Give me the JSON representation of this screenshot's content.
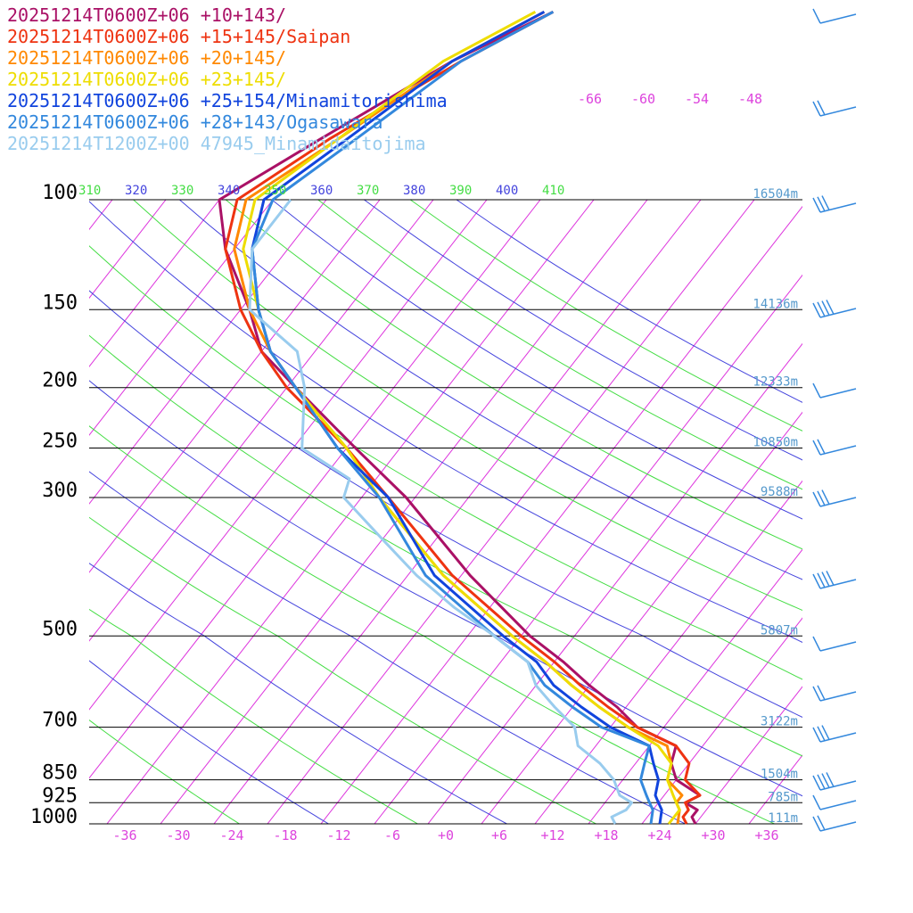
{
  "chart_data": {
    "type": "line",
    "chart_kind": "skew-T log-P aerological diagram",
    "title": "",
    "xlabel": "",
    "ylabel": "",
    "x_axis": {
      "ticks": [
        "-36",
        "-30",
        "-24",
        "-18",
        "-12",
        "-6",
        "+0",
        "+6",
        "+12",
        "+18",
        "+24",
        "+30",
        "+36"
      ],
      "range": [
        -40,
        40
      ],
      "unit": "degC"
    },
    "y_axis": {
      "scale": "log",
      "ticks": [
        "100",
        "150",
        "200",
        "250",
        "300",
        "500",
        "700",
        "850",
        "925",
        "1000"
      ],
      "range": [
        1000,
        100
      ],
      "unit": "hPa"
    },
    "height_labels": [
      {
        "p": 100,
        "text": "16504m"
      },
      {
        "p": 150,
        "text": "14136m"
      },
      {
        "p": 200,
        "text": "12333m"
      },
      {
        "p": 250,
        "text": "10850m"
      },
      {
        "p": 300,
        "text": "9588m"
      },
      {
        "p": 500,
        "text": "5807m"
      },
      {
        "p": 700,
        "text": "3122m"
      },
      {
        "p": 850,
        "text": "1504m"
      },
      {
        "p": 925,
        "text": "785m"
      },
      {
        "p": 1000,
        "text": "111m"
      }
    ],
    "theta_e_labels": [
      {
        "text": "310",
        "color": "#44dd44"
      },
      {
        "text": "320",
        "color": "#4444dd"
      },
      {
        "text": "330",
        "color": "#44dd44"
      },
      {
        "text": "340",
        "color": "#4444dd"
      },
      {
        "text": "350",
        "color": "#44dd44"
      },
      {
        "text": "360",
        "color": "#4444dd"
      },
      {
        "text": "370",
        "color": "#44dd44"
      },
      {
        "text": "380",
        "color": "#4444dd"
      },
      {
        "text": "390",
        "color": "#44dd44"
      },
      {
        "text": "400",
        "color": "#4444dd"
      },
      {
        "text": "410",
        "color": "#44dd44"
      }
    ],
    "isotherm_top_labels": [
      "-66",
      "-60",
      "-54",
      "-48"
    ],
    "grid": true,
    "legend_position": "top-left",
    "series": [
      {
        "name": "20251214T0600Z+06 +10+143/",
        "color": "#aa1166",
        "points": [
          [
            1000,
            28
          ],
          [
            975,
            27
          ],
          [
            950,
            27
          ],
          [
            925,
            25
          ],
          [
            900,
            26
          ],
          [
            850,
            22
          ],
          [
            800,
            20
          ],
          [
            750,
            19
          ],
          [
            700,
            13
          ],
          [
            650,
            9
          ],
          [
            600,
            4
          ],
          [
            550,
            -1
          ],
          [
            500,
            -7
          ],
          [
            400,
            -19
          ],
          [
            300,
            -33
          ],
          [
            250,
            -43
          ],
          [
            200,
            -55
          ],
          [
            175,
            -62
          ],
          [
            150,
            -67
          ],
          [
            120,
            -75
          ],
          [
            100,
            -80
          ],
          [
            80,
            -74
          ],
          [
            60,
            -66
          ],
          [
            50,
            -59
          ]
        ]
      },
      {
        "name": "20251214T0600Z+06 +15+145/Saipan",
        "color": "#ee3311",
        "points": [
          [
            1000,
            27
          ],
          [
            975,
            26
          ],
          [
            950,
            26
          ],
          [
            925,
            25
          ],
          [
            900,
            26
          ],
          [
            850,
            23
          ],
          [
            800,
            22
          ],
          [
            750,
            19
          ],
          [
            700,
            13
          ],
          [
            650,
            8
          ],
          [
            600,
            3
          ],
          [
            550,
            -2
          ],
          [
            500,
            -8
          ],
          [
            400,
            -21
          ],
          [
            300,
            -35
          ],
          [
            250,
            -44
          ],
          [
            200,
            -56
          ],
          [
            175,
            -62
          ],
          [
            150,
            -68
          ],
          [
            120,
            -75
          ],
          [
            100,
            -78
          ],
          [
            80,
            -73
          ],
          [
            60,
            -65
          ],
          [
            50,
            -59
          ]
        ]
      },
      {
        "name": "20251214T0600Z+06 +20+145/",
        "color": "#ff8800",
        "points": [
          [
            1000,
            26
          ],
          [
            950,
            25
          ],
          [
            925,
            24
          ],
          [
            900,
            24
          ],
          [
            850,
            21
          ],
          [
            800,
            20
          ],
          [
            750,
            18
          ],
          [
            700,
            12
          ],
          [
            650,
            7
          ],
          [
            600,
            2
          ],
          [
            550,
            -3
          ],
          [
            500,
            -9
          ],
          [
            400,
            -22
          ],
          [
            300,
            -36
          ],
          [
            250,
            -44
          ],
          [
            200,
            -55
          ],
          [
            175,
            -61
          ],
          [
            150,
            -67
          ],
          [
            120,
            -74
          ],
          [
            100,
            -77
          ],
          [
            80,
            -72
          ],
          [
            60,
            -66
          ],
          [
            50,
            -60
          ]
        ]
      },
      {
        "name": "20251214T0600Z+06 +23+145/",
        "color": "#eedd00",
        "points": [
          [
            1000,
            25
          ],
          [
            950,
            25
          ],
          [
            925,
            24
          ],
          [
            900,
            23
          ],
          [
            850,
            21
          ],
          [
            800,
            20
          ],
          [
            750,
            17
          ],
          [
            700,
            12
          ],
          [
            650,
            7
          ],
          [
            600,
            2
          ],
          [
            550,
            -3
          ],
          [
            500,
            -9
          ],
          [
            400,
            -22
          ],
          [
            300,
            -36
          ],
          [
            250,
            -44
          ],
          [
            200,
            -55
          ],
          [
            175,
            -61
          ],
          [
            150,
            -66
          ],
          [
            120,
            -73
          ],
          [
            100,
            -76
          ],
          [
            80,
            -72
          ],
          [
            60,
            -67
          ],
          [
            50,
            -61
          ]
        ]
      },
      {
        "name": "20251214T0600Z+06 +25+154/Minamitorishima",
        "color": "#1144dd",
        "points": [
          [
            1000,
            24
          ],
          [
            950,
            23
          ],
          [
            925,
            22
          ],
          [
            900,
            21
          ],
          [
            850,
            20
          ],
          [
            800,
            18
          ],
          [
            750,
            16
          ],
          [
            700,
            10
          ],
          [
            650,
            5
          ],
          [
            600,
            0
          ],
          [
            550,
            -4
          ],
          [
            500,
            -10
          ],
          [
            400,
            -23
          ],
          [
            300,
            -35
          ],
          [
            250,
            -45
          ],
          [
            200,
            -55
          ],
          [
            175,
            -61
          ],
          [
            150,
            -66
          ],
          [
            120,
            -72
          ],
          [
            100,
            -75
          ],
          [
            80,
            -71
          ],
          [
            60,
            -66
          ],
          [
            50,
            -60
          ]
        ]
      },
      {
        "name": "20251214T0600Z+06 +28+143/Ogasawara",
        "color": "#3388dd",
        "points": [
          [
            1000,
            23
          ],
          [
            950,
            22
          ],
          [
            925,
            21
          ],
          [
            900,
            20
          ],
          [
            850,
            18
          ],
          [
            800,
            17
          ],
          [
            750,
            16
          ],
          [
            700,
            9
          ],
          [
            650,
            4
          ],
          [
            600,
            -1
          ],
          [
            550,
            -5
          ],
          [
            500,
            -11
          ],
          [
            400,
            -24
          ],
          [
            300,
            -36
          ],
          [
            250,
            -45
          ],
          [
            200,
            -55
          ],
          [
            175,
            -61
          ],
          [
            150,
            -66
          ],
          [
            120,
            -72
          ],
          [
            100,
            -74
          ],
          [
            80,
            -70
          ],
          [
            60,
            -65
          ],
          [
            50,
            -59
          ]
        ]
      },
      {
        "name": "20251214T1200Z+00 47945_Minamidaitojima",
        "color": "#99ccee",
        "points": [
          [
            1000,
            19
          ],
          [
            975,
            18
          ],
          [
            950,
            19
          ],
          [
            925,
            19
          ],
          [
            900,
            17
          ],
          [
            850,
            15
          ],
          [
            800,
            12
          ],
          [
            750,
            8
          ],
          [
            700,
            6
          ],
          [
            650,
            2
          ],
          [
            600,
            -2
          ],
          [
            550,
            -5
          ],
          [
            500,
            -11
          ],
          [
            450,
            -18
          ],
          [
            400,
            -25
          ],
          [
            350,
            -32
          ],
          [
            300,
            -40
          ],
          [
            280,
            -41
          ],
          [
            250,
            -49
          ],
          [
            200,
            -54
          ],
          [
            175,
            -58
          ],
          [
            150,
            -67
          ],
          [
            120,
            -72
          ],
          [
            100,
            -72
          ]
        ]
      }
    ]
  }
}
